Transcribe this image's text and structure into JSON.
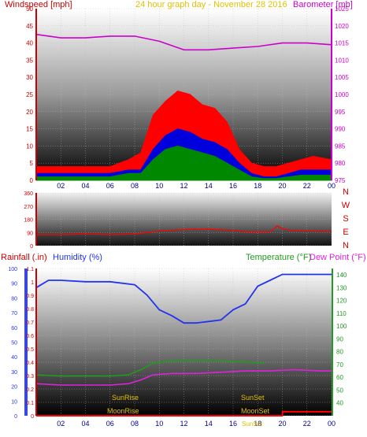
{
  "chart_data": [
    {
      "type": "line",
      "title": "24 hour graph day - November 28 2016",
      "ylabel_left": "Windspeed [mph]",
      "ylabel_right": "Barometer [mb]",
      "ylim_left": [
        0,
        50
      ],
      "ylim_right": [
        975,
        1025
      ],
      "yticks_left": [
        "0",
        "5",
        "10",
        "15",
        "20",
        "25",
        "30",
        "35",
        "40",
        "45",
        "50"
      ],
      "yticks_right": [
        "975",
        "980",
        "985",
        "990",
        "995",
        "1000",
        "1005",
        "1010",
        "1015",
        "1020",
        "1025"
      ],
      "x_ticks": [
        "02",
        "04",
        "06",
        "08",
        "10",
        "12",
        "14",
        "16",
        "18",
        "20",
        "22",
        "00"
      ],
      "grid": true,
      "series": [
        {
          "name": "Barometer",
          "axis": "right",
          "color": "#cc00cc",
          "x": [
            0,
            2,
            4,
            6,
            8,
            10,
            12,
            14,
            16,
            18,
            20,
            22,
            24
          ],
          "values": [
            1017.5,
            1016.5,
            1016.5,
            1017,
            1017,
            1015.5,
            1013,
            1013,
            1013.5,
            1014,
            1015,
            1015,
            1014.5
          ]
        },
        {
          "name": "Wind gust",
          "axis": "left",
          "color": "#ff0000",
          "x": [
            0,
            2,
            4,
            6,
            7.5,
            8.5,
            9.5,
            10.5,
            11.5,
            12.5,
            13.5,
            14.5,
            15.5,
            16.5,
            17.5,
            18.5,
            19.5,
            20.5,
            21.5,
            22.5,
            24
          ],
          "values": [
            4,
            4,
            4,
            4,
            6,
            8,
            19,
            23,
            26,
            25,
            22,
            21,
            17,
            9,
            5,
            4,
            4,
            5,
            6,
            7,
            6
          ]
        },
        {
          "name": "Wind average",
          "axis": "left",
          "color": "#0000dd",
          "x": [
            0,
            2,
            4,
            6,
            7.5,
            8.5,
            9.5,
            10.5,
            11.5,
            12.5,
            13.5,
            14.5,
            15.5,
            16.5,
            17.5,
            18.5,
            19.5,
            20.5,
            21.5,
            22.5,
            24
          ],
          "values": [
            2,
            2,
            2,
            2,
            3,
            3,
            9,
            13,
            15,
            14,
            12,
            11,
            9,
            5,
            2,
            1,
            1,
            2,
            3,
            3,
            3
          ]
        },
        {
          "name": "Wind speed",
          "axis": "left",
          "color": "#008800",
          "x": [
            0,
            2,
            4,
            6,
            7.5,
            8.5,
            9.5,
            10.5,
            11.5,
            12.5,
            13.5,
            14.5,
            15.5,
            16.5,
            17.5,
            18.5,
            19.5,
            20.5,
            21.5,
            22.5,
            24
          ],
          "values": [
            1,
            1,
            1,
            1,
            2,
            2,
            6,
            9,
            10,
            9,
            8,
            7,
            5,
            3,
            1,
            0.5,
            0.5,
            1,
            1.5,
            1.5,
            1.5
          ]
        }
      ]
    },
    {
      "type": "line",
      "ylim": [
        0,
        360
      ],
      "yticks": [
        "0",
        "90",
        "180",
        "270",
        "360"
      ],
      "direction_labels": [
        "N",
        "W",
        "S",
        "E",
        "N"
      ],
      "x_ticks": [
        "02",
        "04",
        "06",
        "08",
        "10",
        "12",
        "14",
        "16",
        "18",
        "20",
        "22",
        "00"
      ],
      "series": [
        {
          "name": "Wind direction",
          "color": "#ff0000",
          "x": [
            0,
            2,
            4,
            6,
            8,
            10,
            12,
            14,
            16,
            17,
            18,
            19,
            19.6,
            20,
            21,
            22,
            24
          ],
          "values": [
            75,
            75,
            80,
            75,
            80,
            100,
            110,
            112,
            105,
            95,
            95,
            95,
            135,
            115,
            100,
            100,
            98
          ]
        }
      ]
    },
    {
      "type": "line",
      "ylabel_left_1": "Rainfall (.in)",
      "ylabel_left_2": "Humidity (%)",
      "ylabel_right_1": "Temperature (°F)",
      "ylabel_right_2": "Dew Point (°F)",
      "ylim_humidity": [
        0,
        100
      ],
      "ylim_rain": [
        0,
        1.1
      ],
      "ylim_temp": [
        30,
        145
      ],
      "yticks_humidity": [
        "0",
        "10",
        "20",
        "30",
        "40",
        "50",
        "60",
        "70",
        "80",
        "90",
        "100"
      ],
      "yticks_rain": [
        "0",
        "0.1",
        "0.2",
        "0.3",
        "0.4",
        "0.5",
        "0.6",
        "0.7",
        "0.8",
        "0.9",
        "1",
        "1.1"
      ],
      "yticks_temp": [
        "40",
        "50",
        "60",
        "70",
        "80",
        "90",
        "100",
        "110",
        "120",
        "130",
        "140"
      ],
      "x_ticks": [
        "02",
        "04",
        "06",
        "08",
        "10",
        "12",
        "14",
        "16",
        "18",
        "20",
        "22",
        "00"
      ],
      "annotations": {
        "sunrise": "SunRise",
        "sunset": "SunSet",
        "moonrise": "MoonRise",
        "moonset": "MoonSet",
        "sunset_bottom": "SunSet"
      },
      "series": [
        {
          "name": "Humidity",
          "axis": "humidity",
          "color": "#2233ee",
          "x": [
            0,
            1,
            2,
            4,
            6,
            8,
            9,
            10,
            11,
            12,
            13,
            14,
            15,
            16,
            17,
            18,
            19,
            20,
            22,
            24
          ],
          "values": [
            87,
            92,
            92,
            91,
            91,
            89,
            82,
            72,
            68,
            63,
            63,
            64,
            65,
            72,
            76,
            88,
            92,
            96,
            96,
            96
          ]
        },
        {
          "name": "Temperature",
          "axis": "temp",
          "color": "#229922",
          "x": [
            0,
            2,
            4,
            6,
            7.5,
            8.5,
            9.5,
            11,
            13,
            15,
            17,
            18.5
          ],
          "values": [
            62,
            61,
            61,
            61,
            62,
            66,
            71,
            73,
            73,
            73,
            72,
            71
          ]
        },
        {
          "name": "Dew Point",
          "axis": "temp",
          "color": "#dd22dd",
          "x": [
            0,
            2,
            4,
            6,
            7.5,
            8.5,
            9.5,
            11,
            13,
            15,
            17,
            19,
            21,
            23,
            24
          ],
          "values": [
            55,
            54,
            54,
            54,
            55,
            58,
            62,
            63,
            63,
            64,
            65,
            65,
            66,
            65,
            65
          ]
        },
        {
          "name": "Rainfall",
          "axis": "rain",
          "color": "#ff0000",
          "x": [
            0,
            20,
            20.01,
            24
          ],
          "values": [
            0,
            0,
            0.03,
            0.03
          ]
        }
      ]
    }
  ]
}
